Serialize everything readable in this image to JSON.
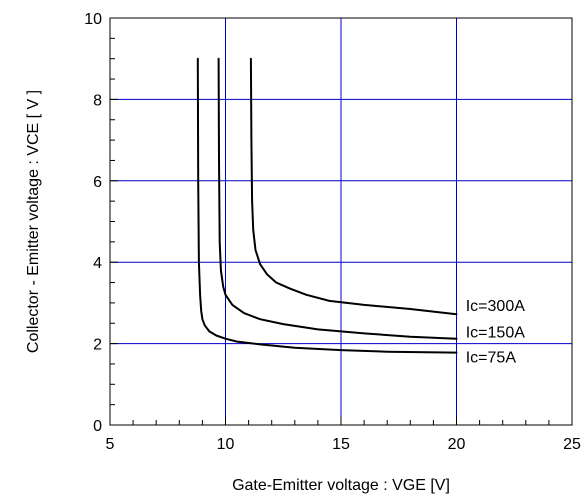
{
  "chart_data": {
    "type": "line",
    "title": "",
    "xlabel": "Gate-Emitter voltage : VGE [V]",
    "ylabel": "Collector - Emitter voltage  :  VCE  [ V ]",
    "xlim": [
      5,
      25
    ],
    "ylim": [
      0,
      10
    ],
    "x_major_ticks": [
      5,
      10,
      15,
      20,
      25
    ],
    "y_major_ticks": [
      0,
      2,
      4,
      6,
      8,
      10
    ],
    "x_tick_labels": [
      "5",
      "10",
      "15",
      "20",
      "25"
    ],
    "y_tick_labels": [
      "0",
      "2",
      "4",
      "6",
      "8",
      "10"
    ],
    "grid": true,
    "grid_color": "#0000cc",
    "line_color": "#000000",
    "series": [
      {
        "name": "Ic=75A",
        "x": [
          8.8,
          8.82,
          8.85,
          8.9,
          8.95,
          9.0,
          9.1,
          9.3,
          9.6,
          10.0,
          10.5,
          11.5,
          13.0,
          15.0,
          17.0,
          20.0
        ],
        "y": [
          9.0,
          6.0,
          4.0,
          3.2,
          2.8,
          2.6,
          2.45,
          2.3,
          2.2,
          2.12,
          2.05,
          1.98,
          1.9,
          1.84,
          1.8,
          1.78
        ]
      },
      {
        "name": "Ic=150A",
        "x": [
          9.7,
          9.72,
          9.75,
          9.8,
          9.9,
          10.0,
          10.3,
          10.8,
          11.5,
          12.5,
          14.0,
          16.0,
          18.0,
          20.0
        ],
        "y": [
          9.0,
          6.5,
          4.5,
          3.8,
          3.4,
          3.2,
          2.95,
          2.75,
          2.6,
          2.48,
          2.35,
          2.25,
          2.17,
          2.12
        ]
      },
      {
        "name": "Ic=300A",
        "x": [
          11.1,
          11.12,
          11.15,
          11.2,
          11.3,
          11.5,
          11.8,
          12.2,
          12.8,
          13.5,
          14.5,
          16.0,
          18.0,
          20.0
        ],
        "y": [
          9.0,
          7.0,
          5.5,
          4.8,
          4.3,
          3.95,
          3.7,
          3.5,
          3.35,
          3.2,
          3.05,
          2.95,
          2.85,
          2.72
        ]
      }
    ],
    "annotations": [
      {
        "text": "Ic=300A",
        "x": 20.4,
        "y": 2.95
      },
      {
        "text": "Ic=150A",
        "x": 20.4,
        "y": 2.3
      },
      {
        "text": "Ic=75A",
        "x": 20.4,
        "y": 1.68
      }
    ]
  }
}
